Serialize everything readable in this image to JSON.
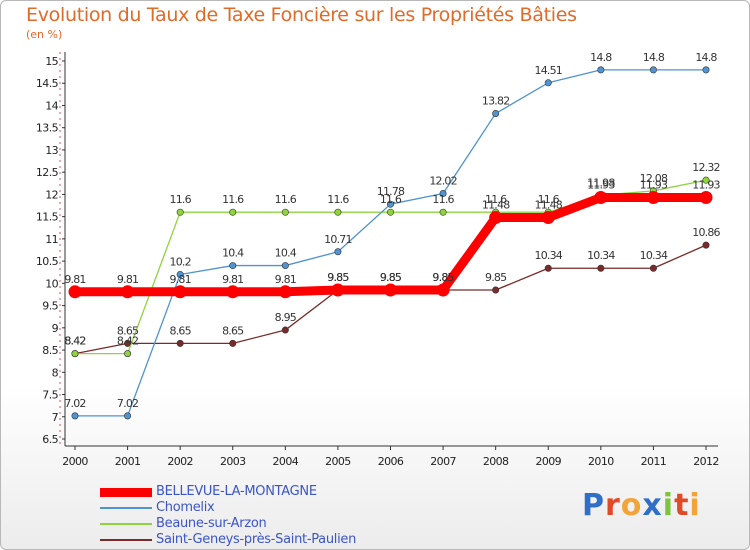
{
  "header": {
    "title": "Evolution du Taux de Taxe Foncière sur les Propriétés Bâties",
    "subtitle": "(en %)"
  },
  "logo": {
    "text": "Proxiti",
    "letter_colors": [
      "#2f6fc8",
      "#e04a26",
      "#f2a43a",
      "#2f6fc8",
      "#7cc43c",
      "#e04a26",
      "#f2a43a"
    ]
  },
  "chart_data": {
    "type": "line",
    "x": [
      2000,
      2001,
      2002,
      2003,
      2004,
      2005,
      2006,
      2007,
      2008,
      2009,
      2010,
      2011,
      2012
    ],
    "ylim": [
      6.5,
      15
    ],
    "yticks": [
      6.5,
      7,
      7.5,
      8,
      8.5,
      9,
      9.5,
      10,
      10.5,
      11,
      11.5,
      12,
      12.5,
      13,
      13.5,
      14,
      14.5,
      15
    ],
    "grid": false,
    "legend": "bottom-left",
    "series": [
      {
        "name": "BELLEVUE-LA-MONTAGNE",
        "color": "#ff0000",
        "values": [
          9.81,
          9.81,
          9.81,
          9.81,
          9.81,
          9.85,
          9.85,
          9.85,
          11.48,
          11.48,
          11.93,
          11.93,
          11.93
        ]
      },
      {
        "name": "Chomelix",
        "color": "#4f93d0",
        "values": [
          7.02,
          7.02,
          10.2,
          10.4,
          10.4,
          10.71,
          11.78,
          12.02,
          13.82,
          14.51,
          14.8,
          14.8,
          14.8
        ]
      },
      {
        "name": "Beaune-sur-Arzon",
        "color": "#8fd43c",
        "values": [
          8.42,
          8.42,
          11.6,
          11.6,
          11.6,
          11.6,
          11.6,
          11.6,
          11.6,
          11.6,
          11.98,
          12.08,
          12.32
        ]
      },
      {
        "name": "Saint-Geneys-près-Saint-Paulien",
        "color": "#7a2a2a",
        "values": [
          8.42,
          8.65,
          8.65,
          8.65,
          8.95,
          9.85,
          9.85,
          9.85,
          9.85,
          10.34,
          10.34,
          10.34,
          10.86
        ]
      }
    ]
  }
}
